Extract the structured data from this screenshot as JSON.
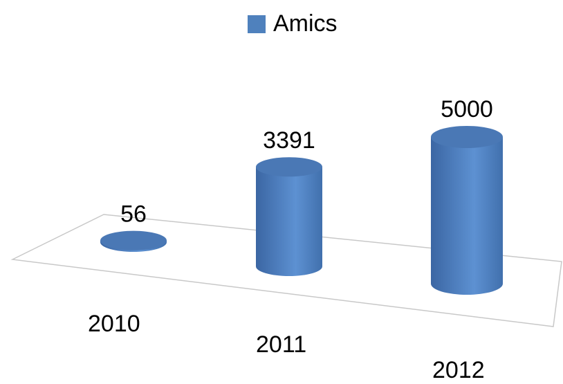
{
  "chart_data": {
    "type": "bar3d",
    "categories": [
      "2010",
      "2011",
      "2012"
    ],
    "series": [
      {
        "name": "Amics",
        "color": "#4f81bd",
        "values": [
          56,
          3391,
          5000
        ]
      }
    ],
    "legend": "top"
  }
}
